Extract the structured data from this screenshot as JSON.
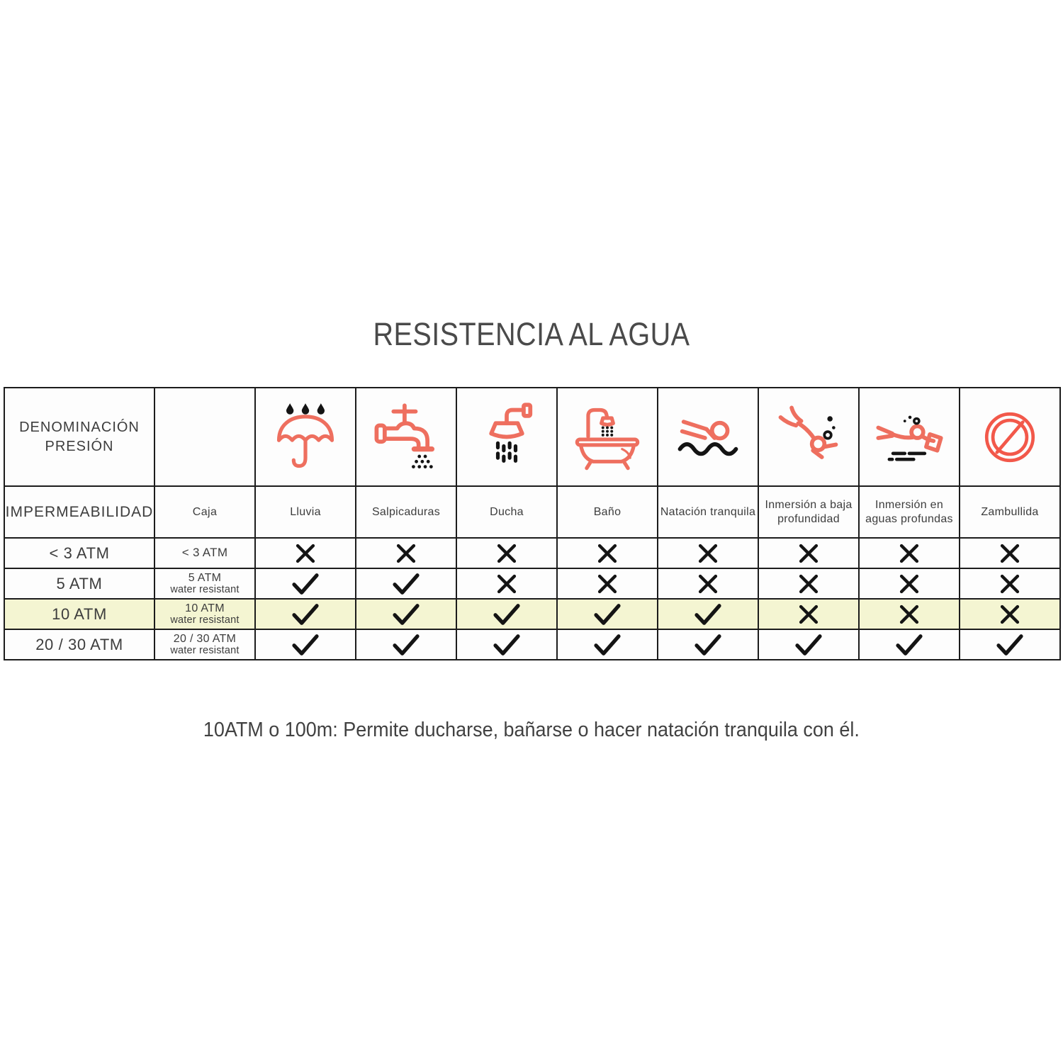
{
  "title": "RESISTENCIA AL AGUA",
  "note": "10ATM o 100m: Permite ducharse, bañarse o hacer natación tranquila con él.",
  "colors": {
    "accent": "#ee6f5f",
    "accent_strong": "#f2584a",
    "highlight_row": "#f4f5d2",
    "border": "#1c1c1c",
    "text": "#3d3d3d",
    "title_text": "#4a4a4a"
  },
  "table": {
    "corner_top": "DENOMINACIÓN PRESIÓN",
    "corner_bottom": "IMPERMEABILIDAD",
    "caja_header": "Caja",
    "columns": [
      {
        "icon": "umbrella-rain-icon",
        "label": "Lluvia"
      },
      {
        "icon": "faucet-icon",
        "label": "Salpicaduras"
      },
      {
        "icon": "shower-icon",
        "label": "Ducha"
      },
      {
        "icon": "bathtub-icon",
        "label": "Baño"
      },
      {
        "icon": "swimmer-icon",
        "label": "Natación tranquila"
      },
      {
        "icon": "scuba-diver-icon",
        "label": "Inmersión a baja profundidad"
      },
      {
        "icon": "deep-diver-icon",
        "label": "Inmersión en aguas profundas"
      },
      {
        "icon": "no-diving-icon",
        "label": "Zambullida"
      }
    ],
    "rows": [
      {
        "pressure": "< 3 ATM",
        "caja": "< 3 ATM",
        "caja_sub": "",
        "highlight": false,
        "allowed": [
          false,
          false,
          false,
          false,
          false,
          false,
          false,
          false
        ]
      },
      {
        "pressure": "5 ATM",
        "caja": "5 ATM",
        "caja_sub": "water resistant",
        "highlight": false,
        "allowed": [
          true,
          true,
          false,
          false,
          false,
          false,
          false,
          false
        ]
      },
      {
        "pressure": "10 ATM",
        "caja": "10 ATM",
        "caja_sub": "water resistant",
        "highlight": true,
        "allowed": [
          true,
          true,
          true,
          true,
          true,
          false,
          false,
          false
        ]
      },
      {
        "pressure": "20 / 30 ATM",
        "caja": "20 / 30 ATM",
        "caja_sub": "water resistant",
        "highlight": false,
        "allowed": [
          true,
          true,
          true,
          true,
          true,
          true,
          true,
          true
        ]
      }
    ],
    "marks": {
      "allowed": "check-icon",
      "not_allowed": "cross-icon"
    }
  }
}
